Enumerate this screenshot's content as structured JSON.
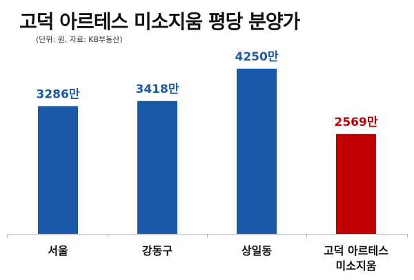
{
  "chart_data": {
    "type": "bar",
    "title": "고덕 아르테스 미소지움 평당 분양가",
    "subtitle": "(단위: 원, 자료: KB부동산)",
    "categories": [
      "서울",
      "강동구",
      "상일동",
      "고덕 아르테스 미소지움"
    ],
    "values": [
      32860000,
      34180000,
      42500000,
      25690000
    ],
    "value_labels": [
      "3286만",
      "3418만",
      "4250만",
      "2569만"
    ],
    "colors": [
      "#1a5aa8",
      "#1a5aa8",
      "#1a5aa8",
      "#c00000"
    ],
    "label_colors": [
      "#1a5aa8",
      "#1a5aa8",
      "#1a5aa8",
      "#c00000"
    ],
    "ylim": [
      0,
      46000000
    ],
    "grid": false,
    "legend": "none"
  }
}
